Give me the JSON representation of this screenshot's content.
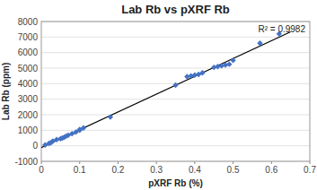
{
  "chart_data": {
    "type": "scatter",
    "title": "Lab Rb vs pXRF Rb",
    "x_label": "pXRF Rb (%)",
    "y_label": "Lab Rb (ppm)",
    "annotation": "R² = 0.9982",
    "xlim": [
      0,
      0.7
    ],
    "ylim": [
      -1000,
      8000
    ],
    "xticks": [
      0,
      0.1,
      0.2,
      0.3,
      0.4,
      0.5,
      0.6,
      0.7
    ],
    "yticks": [
      -1000,
      0,
      1000,
      2000,
      3000,
      4000,
      5000,
      6000,
      7000,
      8000
    ],
    "grid": true,
    "series": [
      {
        "type": "scatter",
        "color": "#4472C4",
        "marker": "diamond",
        "x": [
          0.01,
          0.02,
          0.025,
          0.03,
          0.04,
          0.05,
          0.055,
          0.06,
          0.065,
          0.07,
          0.08,
          0.09,
          0.1,
          0.1,
          0.11,
          0.18,
          0.35,
          0.38,
          0.39,
          0.4,
          0.41,
          0.42,
          0.45,
          0.46,
          0.47,
          0.48,
          0.49,
          0.5,
          0.57,
          0.62
        ],
        "values": [
          50,
          150,
          200,
          300,
          400,
          450,
          500,
          550,
          620,
          680,
          780,
          880,
          1000,
          1050,
          1150,
          1850,
          3900,
          4450,
          4500,
          4550,
          4600,
          4700,
          5050,
          5100,
          5150,
          5200,
          5250,
          5500,
          6600,
          7200
        ]
      },
      {
        "type": "line",
        "color": "black",
        "x": [
          0,
          0.65
        ],
        "values": [
          -111.37,
          7340.9
        ]
      }
    ]
  }
}
